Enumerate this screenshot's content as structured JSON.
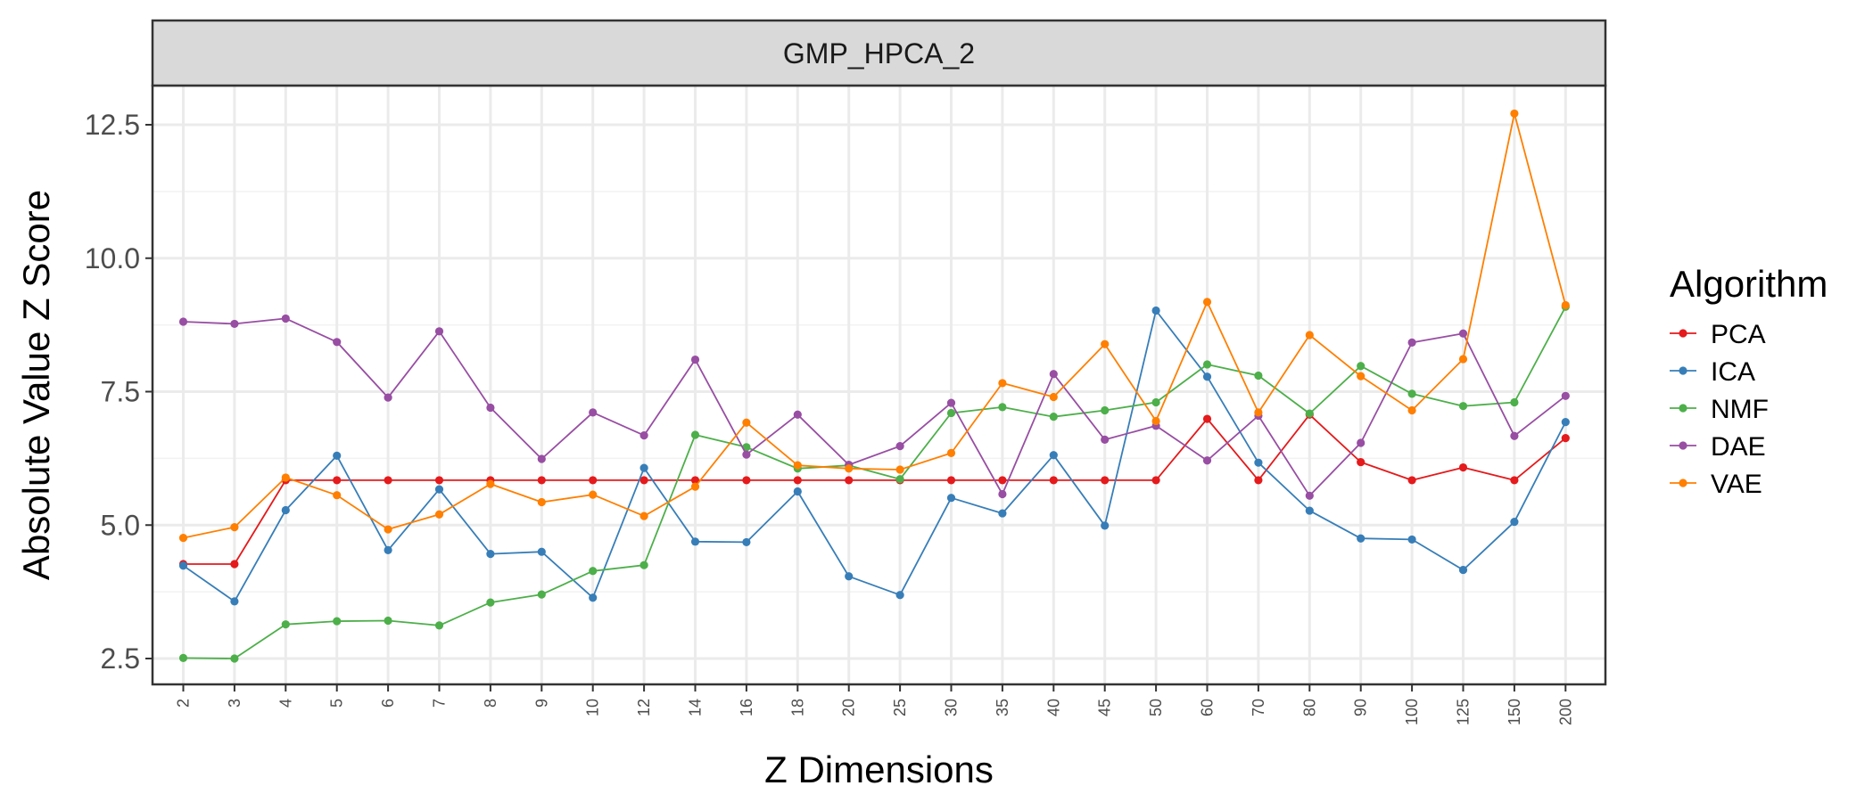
{
  "chart_data": {
    "type": "line",
    "facet_label": "GMP_HPCA_2",
    "xlabel": "Z Dimensions",
    "ylabel": "Absolute Value Z Score",
    "x_ticks": [
      "2",
      "3",
      "4",
      "5",
      "6",
      "7",
      "8",
      "9",
      "10",
      "12",
      "14",
      "16",
      "18",
      "20",
      "25",
      "30",
      "35",
      "40",
      "45",
      "50",
      "60",
      "70",
      "80",
      "90",
      "100",
      "125",
      "150",
      "200"
    ],
    "x_scale": "categorical",
    "ylim": [
      2.0,
      13.0
    ],
    "y_ticks": [
      2.5,
      5.0,
      7.5,
      10.0,
      12.5
    ],
    "y_tick_labels": [
      "2.5",
      "5.0",
      "7.5",
      "10.0",
      "12.5"
    ],
    "grid": true,
    "legend": {
      "title": "Algorithm",
      "position": "right"
    },
    "series": [
      {
        "name": "PCA",
        "color": "#e41a1c",
        "values": [
          4.27,
          4.27,
          5.84,
          5.84,
          5.84,
          5.84,
          5.84,
          5.84,
          5.84,
          5.84,
          5.84,
          5.84,
          5.84,
          5.84,
          5.84,
          5.84,
          5.84,
          5.84,
          5.84,
          5.84,
          6.99,
          5.84,
          7.07,
          6.18,
          5.84,
          6.08,
          5.84,
          6.63
        ]
      },
      {
        "name": "ICA",
        "color": "#377eb8",
        "values": [
          4.24,
          3.57,
          5.28,
          6.3,
          4.53,
          5.67,
          4.46,
          4.5,
          3.64,
          6.07,
          4.69,
          4.68,
          5.63,
          4.04,
          3.69,
          5.51,
          5.22,
          6.31,
          4.99,
          9.02,
          7.78,
          6.17,
          5.27,
          4.75,
          4.73,
          4.16,
          5.06,
          6.93
        ]
      },
      {
        "name": "NMF",
        "color": "#4daf4a",
        "values": [
          2.51,
          2.5,
          3.14,
          3.2,
          3.21,
          3.12,
          3.55,
          3.7,
          4.14,
          4.25,
          6.69,
          6.46,
          6.06,
          6.12,
          5.86,
          7.1,
          7.21,
          7.03,
          7.15,
          7.3,
          8.01,
          7.8,
          7.09,
          7.98,
          7.46,
          7.23,
          7.3,
          9.09
        ]
      },
      {
        "name": "DAE",
        "color": "#984ea3",
        "values": [
          8.81,
          8.77,
          8.87,
          8.43,
          7.39,
          8.63,
          7.2,
          6.24,
          7.11,
          6.68,
          8.1,
          6.32,
          7.07,
          6.13,
          6.48,
          7.29,
          5.58,
          7.83,
          6.6,
          6.86,
          6.21,
          7.05,
          5.55,
          6.54,
          8.42,
          8.59,
          6.67,
          7.42
        ]
      },
      {
        "name": "VAE",
        "color": "#ff7f00",
        "values": [
          4.76,
          4.96,
          5.89,
          5.56,
          4.92,
          5.2,
          5.77,
          5.43,
          5.57,
          5.17,
          5.72,
          6.92,
          6.12,
          6.06,
          6.04,
          6.35,
          7.66,
          7.4,
          8.39,
          6.95,
          9.18,
          7.11,
          8.56,
          7.79,
          7.15,
          8.11,
          12.71,
          9.12
        ]
      }
    ]
  }
}
